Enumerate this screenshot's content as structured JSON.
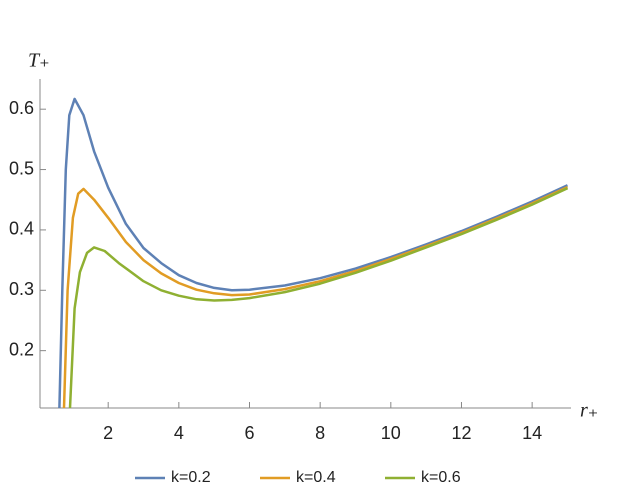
{
  "chart_data": {
    "type": "line",
    "y_label": "T₊",
    "x_label": "r₊",
    "xlim": [
      0.07,
      15.1
    ],
    "ylim": [
      0.105,
      0.65
    ],
    "xticks": [
      2,
      4,
      6,
      8,
      10,
      12,
      14
    ],
    "yticks": [
      0.2,
      0.3,
      0.4,
      0.5,
      0.6
    ],
    "series": [
      {
        "name": "k=0.2",
        "color": "#5e81b5",
        "x": [
          0.62,
          0.7,
          0.8,
          0.9,
          1.05,
          1.3,
          1.6,
          2,
          2.5,
          3,
          3.5,
          4,
          4.5,
          5,
          5.5,
          6,
          7,
          8,
          9,
          10,
          11,
          12,
          13,
          14,
          15
        ],
        "values": [
          0.105,
          0.3,
          0.5,
          0.59,
          0.617,
          0.59,
          0.53,
          0.47,
          0.41,
          0.37,
          0.345,
          0.325,
          0.312,
          0.304,
          0.3,
          0.301,
          0.308,
          0.32,
          0.336,
          0.355,
          0.376,
          0.398,
          0.422,
          0.447,
          0.474
        ]
      },
      {
        "name": "k=0.4",
        "color": "#e19c24",
        "x": [
          0.75,
          0.85,
          1.0,
          1.15,
          1.3,
          1.6,
          2,
          2.5,
          3,
          3.5,
          4,
          4.5,
          5,
          5.5,
          6,
          7,
          8,
          9,
          10,
          11,
          12,
          13,
          14,
          15
        ],
        "values": [
          0.105,
          0.3,
          0.42,
          0.46,
          0.468,
          0.45,
          0.42,
          0.38,
          0.35,
          0.328,
          0.312,
          0.301,
          0.295,
          0.292,
          0.293,
          0.302,
          0.315,
          0.332,
          0.352,
          0.373,
          0.395,
          0.419,
          0.444,
          0.471
        ]
      },
      {
        "name": "k=0.6",
        "color": "#8fb032",
        "x": [
          0.92,
          1.05,
          1.2,
          1.4,
          1.6,
          1.9,
          2.3,
          3,
          3.5,
          4,
          4.5,
          5,
          5.5,
          6,
          7,
          8,
          9,
          10,
          11,
          12,
          13,
          14,
          15
        ],
        "values": [
          0.105,
          0.27,
          0.33,
          0.362,
          0.371,
          0.365,
          0.345,
          0.315,
          0.3,
          0.291,
          0.285,
          0.283,
          0.284,
          0.287,
          0.297,
          0.311,
          0.329,
          0.349,
          0.371,
          0.393,
          0.417,
          0.442,
          0.469
        ]
      }
    ]
  }
}
